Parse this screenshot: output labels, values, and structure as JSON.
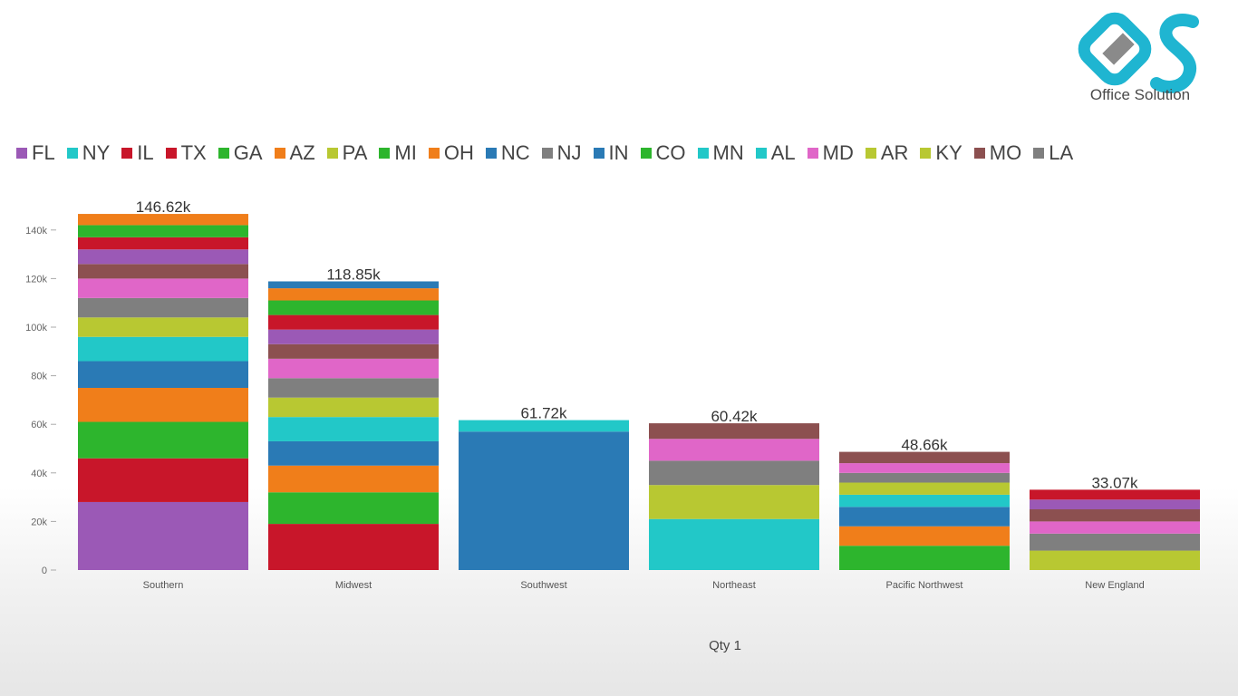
{
  "brand": {
    "name": "Office Solution"
  },
  "chart_data": {
    "type": "bar",
    "stacked": true,
    "xlabel": "Qty 1",
    "ylabel": "",
    "ylim": [
      0,
      150000
    ],
    "yticks": [
      0,
      20000,
      40000,
      60000,
      80000,
      100000,
      120000,
      140000
    ],
    "ytick_labels": [
      "0",
      "20k",
      "40k",
      "60k",
      "80k",
      "100k",
      "120k",
      "140k"
    ],
    "legend_position": "top",
    "grid": false,
    "categories": [
      "Southern",
      "Midwest",
      "Southwest",
      "Northeast",
      "Pacific Northwest",
      "New England"
    ],
    "totals": [
      146620,
      118850,
      61720,
      60420,
      48660,
      33070
    ],
    "total_labels": [
      "146.62k",
      "118.85k",
      "61.72k",
      "60.42k",
      "48.66k",
      "33.07k"
    ],
    "series": [
      {
        "name": "FL",
        "color": "#9b59b6"
      },
      {
        "name": "NY",
        "color": "#22c8c8"
      },
      {
        "name": "IL",
        "color": "#c8162a"
      },
      {
        "name": "TX",
        "color": "#c8162a"
      },
      {
        "name": "GA",
        "color": "#2db52d"
      },
      {
        "name": "AZ",
        "color": "#f07e1a"
      },
      {
        "name": "PA",
        "color": "#b8c832"
      },
      {
        "name": "MI",
        "color": "#2db52d"
      },
      {
        "name": "OH",
        "color": "#f07e1a"
      },
      {
        "name": "NC",
        "color": "#2a7ab5"
      },
      {
        "name": "NJ",
        "color": "#7f7f7f"
      },
      {
        "name": "IN",
        "color": "#2a7ab5"
      },
      {
        "name": "CO",
        "color": "#2db52d"
      },
      {
        "name": "MN",
        "color": "#22c8c8"
      },
      {
        "name": "AL",
        "color": "#22c8c8"
      },
      {
        "name": "MD",
        "color": "#e066c8"
      },
      {
        "name": "AR",
        "color": "#b8c832"
      },
      {
        "name": "KY",
        "color": "#b8c832"
      },
      {
        "name": "MO",
        "color": "#8c5050"
      },
      {
        "name": "LA",
        "color": "#7f7f7f"
      }
    ],
    "stacks": [
      [
        {
          "value": 28000,
          "color": "#9b59b6"
        },
        {
          "value": 18000,
          "color": "#c8162a"
        },
        {
          "value": 15000,
          "color": "#2db52d"
        },
        {
          "value": 14000,
          "color": "#f07e1a"
        },
        {
          "value": 11000,
          "color": "#2a7ab5"
        },
        {
          "value": 10000,
          "color": "#22c8c8"
        },
        {
          "value": 8000,
          "color": "#b8c832"
        },
        {
          "value": 8000,
          "color": "#7f7f7f"
        },
        {
          "value": 8000,
          "color": "#e066c8"
        },
        {
          "value": 6000,
          "color": "#8c5050"
        },
        {
          "value": 6000,
          "color": "#9b59b6"
        },
        {
          "value": 5000,
          "color": "#c8162a"
        },
        {
          "value": 5000,
          "color": "#2db52d"
        },
        {
          "value": 4620,
          "color": "#f07e1a"
        }
      ],
      [
        {
          "value": 19000,
          "color": "#c8162a"
        },
        {
          "value": 13000,
          "color": "#2db52d"
        },
        {
          "value": 11000,
          "color": "#f07e1a"
        },
        {
          "value": 10000,
          "color": "#2a7ab5"
        },
        {
          "value": 10000,
          "color": "#22c8c8"
        },
        {
          "value": 8000,
          "color": "#b8c832"
        },
        {
          "value": 8000,
          "color": "#7f7f7f"
        },
        {
          "value": 8000,
          "color": "#e066c8"
        },
        {
          "value": 6000,
          "color": "#8c5050"
        },
        {
          "value": 6000,
          "color": "#9b59b6"
        },
        {
          "value": 6000,
          "color": "#c8162a"
        },
        {
          "value": 6000,
          "color": "#2db52d"
        },
        {
          "value": 5000,
          "color": "#f07e1a"
        },
        {
          "value": 2850,
          "color": "#2a7ab5"
        }
      ],
      [
        {
          "value": 57000,
          "color": "#2a7ab5"
        },
        {
          "value": 4720,
          "color": "#22c8c8"
        }
      ],
      [
        {
          "value": 21000,
          "color": "#22c8c8"
        },
        {
          "value": 14000,
          "color": "#b8c832"
        },
        {
          "value": 10000,
          "color": "#7f7f7f"
        },
        {
          "value": 9000,
          "color": "#e066c8"
        },
        {
          "value": 6420,
          "color": "#8c5050"
        }
      ],
      [
        {
          "value": 10000,
          "color": "#2db52d"
        },
        {
          "value": 8000,
          "color": "#f07e1a"
        },
        {
          "value": 8000,
          "color": "#2a7ab5"
        },
        {
          "value": 5000,
          "color": "#22c8c8"
        },
        {
          "value": 5000,
          "color": "#b8c832"
        },
        {
          "value": 4000,
          "color": "#7f7f7f"
        },
        {
          "value": 4000,
          "color": "#e066c8"
        },
        {
          "value": 4660,
          "color": "#8c5050"
        }
      ],
      [
        {
          "value": 8000,
          "color": "#b8c832"
        },
        {
          "value": 7000,
          "color": "#7f7f7f"
        },
        {
          "value": 5000,
          "color": "#e066c8"
        },
        {
          "value": 5000,
          "color": "#8c5050"
        },
        {
          "value": 4000,
          "color": "#9b59b6"
        },
        {
          "value": 4070,
          "color": "#c8162a"
        }
      ]
    ]
  }
}
